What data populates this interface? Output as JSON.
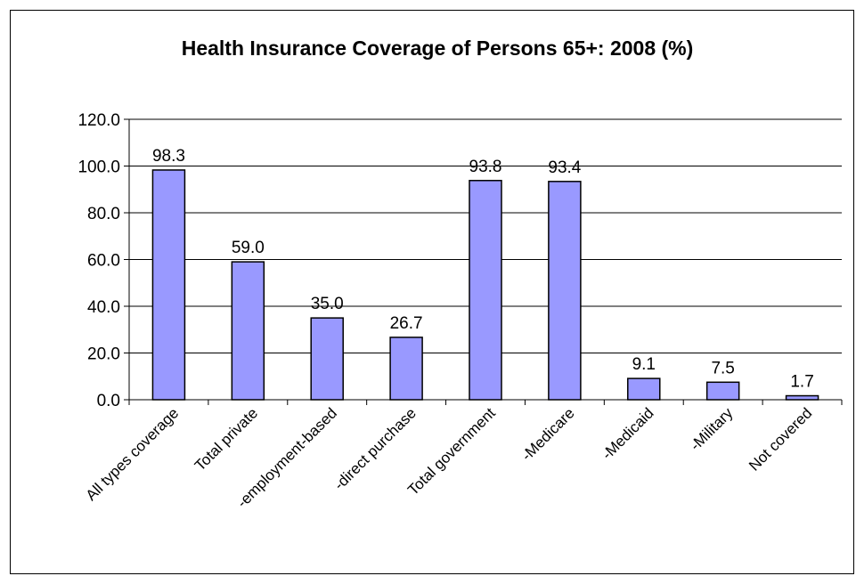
{
  "chart_data": {
    "type": "bar",
    "title": "Health Insurance Coverage of Persons 65+: 2008 (%)",
    "xlabel": "",
    "ylabel": "",
    "categories": [
      "All types coverage",
      "Total private",
      "-employment-based",
      "-direct purchase",
      "Total government",
      "-Medicare",
      "-Medicaid",
      "-Military",
      "Not covered"
    ],
    "values": [
      98.3,
      59.0,
      35.0,
      26.7,
      93.8,
      93.4,
      9.1,
      7.5,
      1.7
    ],
    "value_labels": [
      "98.3",
      "59.0",
      "35.0",
      "26.7",
      "93.8",
      "93.4",
      "9.1",
      "7.5",
      "1.7"
    ],
    "ylim": [
      0,
      120
    ],
    "yticks": [
      0,
      20,
      40,
      60,
      80,
      100,
      120
    ],
    "ytick_labels": [
      "0.0",
      "20.0",
      "40.0",
      "60.0",
      "80.0",
      "100.0",
      "120.0"
    ],
    "grid": true,
    "legend": "none",
    "bar_color": "#9999ff",
    "bar_edge_color": "#000000"
  }
}
